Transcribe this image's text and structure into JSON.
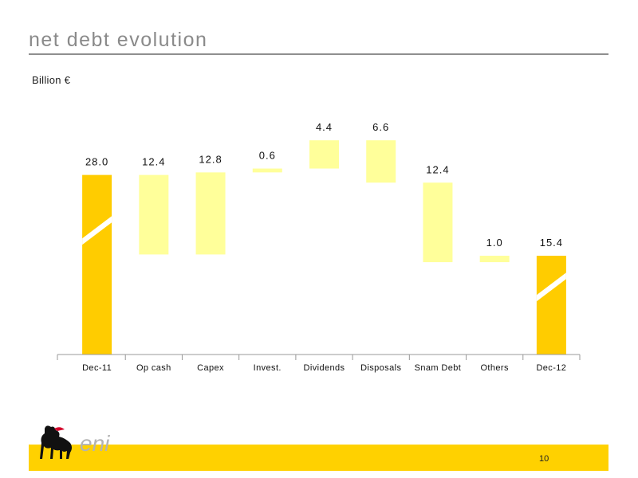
{
  "header": {
    "title": "net debt evolution",
    "unit": "Billion €"
  },
  "footer": {
    "page_number": "10",
    "logo_text": "eni"
  },
  "colors": {
    "total_bar": "#ffcc00",
    "change_bar": "#ffff9a",
    "axis": "#999999",
    "footer_band": "#ffd100"
  },
  "chart_data": {
    "type": "bar",
    "subtype": "waterfall",
    "categories": [
      "Dec-11",
      "Op cash",
      "Capex",
      "Invest.",
      "Dividends",
      "Disposals",
      "Snam Debt",
      "Others",
      "Dec-12"
    ],
    "values": [
      28.0,
      12.4,
      12.8,
      0.6,
      4.4,
      6.6,
      12.4,
      1.0,
      15.4
    ],
    "labels": [
      "28.0",
      "12.4",
      "12.8",
      "0.6",
      "4.4",
      "6.6",
      "12.4",
      "1.0",
      "15.4"
    ],
    "bar_kind": [
      "total",
      "change",
      "change",
      "change",
      "change",
      "change",
      "change",
      "change",
      "total"
    ],
    "ranges": [
      [
        0,
        28.0
      ],
      [
        15.6,
        28.0
      ],
      [
        15.6,
        28.4
      ],
      [
        28.4,
        29.0
      ],
      [
        29.0,
        33.4
      ],
      [
        26.8,
        33.4
      ],
      [
        14.4,
        26.8
      ],
      [
        14.4,
        15.4
      ],
      [
        0,
        15.4
      ]
    ],
    "axis_break_on_totals": true,
    "ylim": [
      0,
      34
    ],
    "gridlines": false,
    "legend": "none"
  }
}
